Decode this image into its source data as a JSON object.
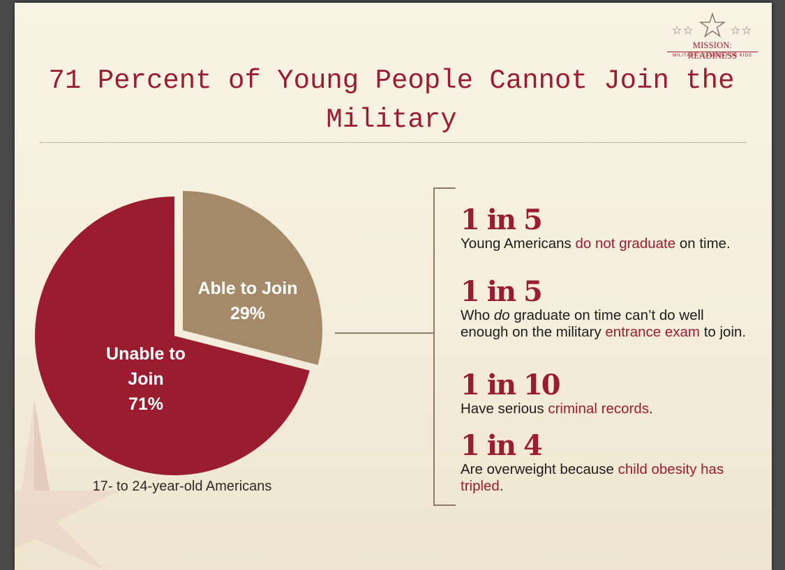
{
  "logo": {
    "line1": "MISSION: READINESS",
    "line2": "MILITARY LEADERS FOR KIDS"
  },
  "title": "71 Percent of Young People Cannot Join the Military",
  "colors": {
    "unable": "#9b1c2e",
    "able": "#a58a69",
    "background": "#f6f0e0",
    "bracket": "#8b7a66"
  },
  "chart_data": {
    "type": "pie",
    "slices": [
      {
        "label": "Unable to Join",
        "display_lines": [
          "Unable to",
          "Join",
          "71%"
        ],
        "value": 71,
        "percent_label": "71%"
      },
      {
        "label": "Able to Join",
        "display_lines": [
          "Able to Join",
          "29%"
        ],
        "value": 29,
        "percent_label": "29%"
      }
    ],
    "caption": "17- to 24-year-old Americans"
  },
  "stats": [
    {
      "figure": "1 in 5",
      "parts": [
        {
          "text": "Young Americans ",
          "hl": false
        },
        {
          "text": "do not graduate",
          "hl": true
        },
        {
          "text": " on time.",
          "hl": false
        }
      ]
    },
    {
      "figure": "1 in 5",
      "parts": [
        {
          "text": "Who ",
          "hl": false
        },
        {
          "text": "do",
          "hl": false,
          "italic": true
        },
        {
          "text": " graduate on time can’t do well enough on the military ",
          "hl": false
        },
        {
          "text": "entrance exam",
          "hl": true
        },
        {
          "text": " to join.",
          "hl": false
        }
      ]
    },
    {
      "figure": "1 in 10",
      "parts": [
        {
          "text": "Have serious ",
          "hl": false
        },
        {
          "text": "criminal records",
          "hl": true
        },
        {
          "text": ".",
          "hl": false
        }
      ]
    },
    {
      "figure": "1 in 4",
      "parts": [
        {
          "text": "Are overweight because ",
          "hl": false
        },
        {
          "text": "child obesity has tripled",
          "hl": true
        },
        {
          "text": ".",
          "hl": false
        }
      ]
    }
  ]
}
